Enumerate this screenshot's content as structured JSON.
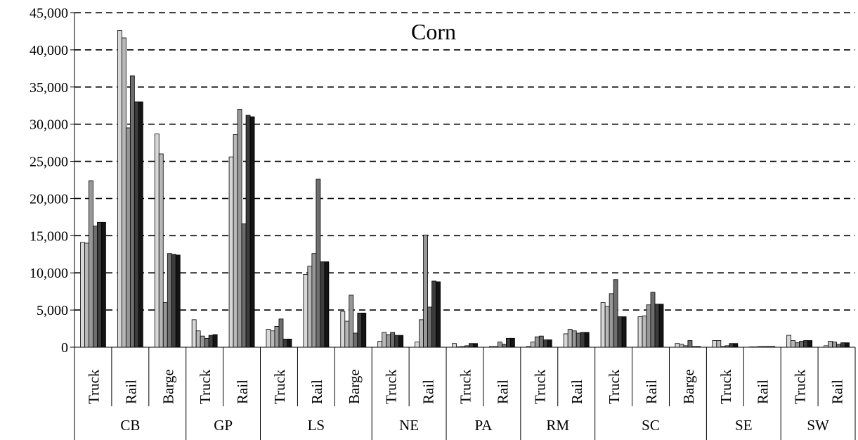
{
  "chart_data": {
    "type": "bar",
    "title": "Corn",
    "xlabel": "",
    "ylabel": "",
    "ylim": [
      0,
      45000
    ],
    "yticks": [
      "0",
      "5,000",
      "10,000",
      "15,000",
      "20,000",
      "25,000",
      "30,000",
      "35,000",
      "40,000",
      "45,000"
    ],
    "grid": "horizontal-dashed",
    "series_colors": [
      "#d8d8d8",
      "#b8b8b8",
      "#989898",
      "#6e6e6e",
      "#3c3c3c",
      "#141414"
    ],
    "groups": [
      {
        "region": "CB",
        "modes": [
          {
            "mode": "Truck",
            "values": [
              14100,
              14000,
              22400,
              16300,
              16800,
              16800
            ]
          },
          {
            "mode": "Rail",
            "values": [
              42600,
              41600,
              29500,
              36500,
              33000,
              33000
            ]
          },
          {
            "mode": "Barge",
            "values": [
              28700,
              26000,
              6000,
              12600,
              12500,
              12400
            ]
          }
        ]
      },
      {
        "region": "GP",
        "modes": [
          {
            "mode": "Truck",
            "values": [
              3700,
              2200,
              1500,
              1200,
              1600,
              1700
            ]
          },
          {
            "mode": "Rail",
            "values": [
              25600,
              28600,
              32000,
              16600,
              31200,
              31000
            ]
          }
        ]
      },
      {
        "region": "LS",
        "modes": [
          {
            "mode": "Truck",
            "values": [
              2400,
              2200,
              2800,
              3800,
              1100,
              1100
            ]
          },
          {
            "mode": "Rail",
            "values": [
              9800,
              10900,
              12600,
              22600,
              11500,
              11500
            ]
          },
          {
            "mode": "Barge",
            "values": [
              4800,
              3500,
              7000,
              1900,
              4600,
              4600
            ]
          }
        ]
      },
      {
        "region": "NE",
        "modes": [
          {
            "mode": "Truck",
            "values": [
              800,
              2000,
              1700,
              2000,
              1600,
              1600
            ]
          },
          {
            "mode": "Rail",
            "values": [
              700,
              3700,
              15100,
              5400,
              8900,
              8800
            ]
          }
        ]
      },
      {
        "region": "PA",
        "modes": [
          {
            "mode": "Truck",
            "values": [
              500,
              50,
              100,
              200,
              500,
              500
            ]
          },
          {
            "mode": "Rail",
            "values": [
              100,
              100,
              700,
              400,
              1200,
              1200
            ]
          }
        ]
      },
      {
        "region": "RM",
        "modes": [
          {
            "mode": "Truck",
            "values": [
              100,
              700,
              1400,
              1500,
              1000,
              1000
            ]
          },
          {
            "mode": "Rail",
            "values": [
              1800,
              2400,
              2200,
              1900,
              2000,
              2000
            ]
          }
        ]
      },
      {
        "region": "SC",
        "modes": [
          {
            "mode": "Truck",
            "values": [
              6000,
              5500,
              7200,
              9100,
              4100,
              4100
            ]
          },
          {
            "mode": "Rail",
            "values": [
              4100,
              4200,
              5700,
              7400,
              5800,
              5800
            ]
          },
          {
            "mode": "Barge",
            "values": [
              500,
              400,
              200,
              900,
              100,
              100
            ]
          }
        ]
      },
      {
        "region": "SE",
        "modes": [
          {
            "mode": "Truck",
            "values": [
              900,
              900,
              100,
              200,
              500,
              500
            ]
          },
          {
            "mode": "Rail",
            "values": [
              50,
              50,
              100,
              100,
              100,
              100
            ]
          }
        ]
      },
      {
        "region": "SW",
        "modes": [
          {
            "mode": "Truck",
            "values": [
              1600,
              900,
              600,
              800,
              900,
              900
            ]
          },
          {
            "mode": "Rail",
            "values": [
              200,
              800,
              700,
              400,
              600,
              600
            ]
          }
        ]
      }
    ]
  }
}
